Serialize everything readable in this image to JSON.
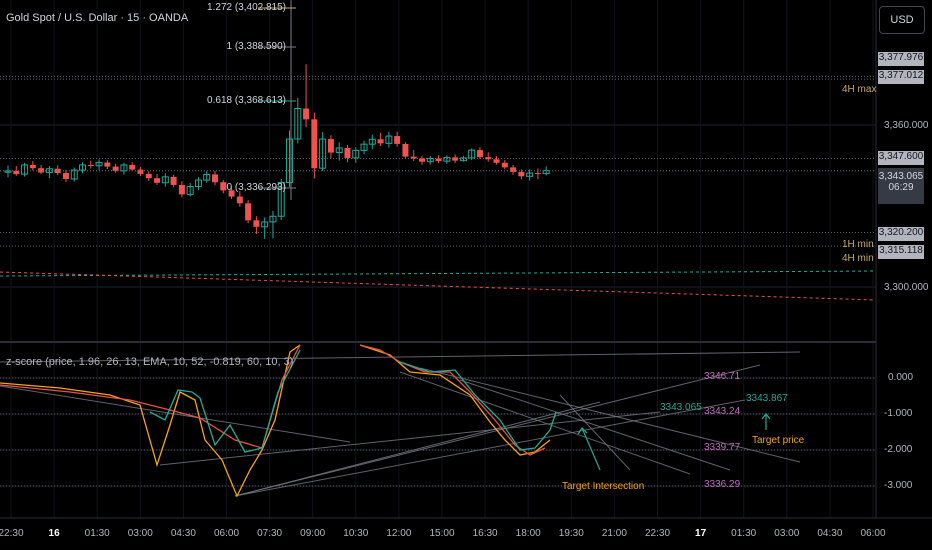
{
  "title": "Gold Spot / U.S. Dollar · 15 · OANDA",
  "currency_button": "USD",
  "indicator_title": "z-score (price, 1.96, 26, 13, EMA, 10, 52, -0.819, 60, 10, 3)",
  "colors": {
    "background": "#000000",
    "bullish": "#26a69a",
    "bearish": "#ef5350",
    "fib_gold": "#c8a96a",
    "fib_teal": "#26a69a",
    "grid": "#1e2230",
    "dotted": "#5d606b",
    "orange": "#f7a21b",
    "magenta": "#c46ac4",
    "red_line": "#e5534b",
    "teal_line": "#22ab94",
    "gray_line": "#787b86"
  },
  "price_axis": {
    "ticks": [
      "3,360.000",
      "3,300.000"
    ],
    "tags": [
      {
        "value": "3,377.976",
        "style": "gray"
      },
      {
        "value": "3,377.012",
        "style": "gray"
      },
      {
        "value": "3,347.600",
        "style": "gray"
      },
      {
        "value": "3,343.065",
        "style": "dark",
        "sub": "06:29"
      },
      {
        "value": "3,320.200",
        "style": "gray"
      },
      {
        "value": "3,315.118",
        "style": "gray"
      }
    ],
    "level_labels": [
      {
        "text": "4H max",
        "color": "#c8a96a"
      },
      {
        "text": "1H min",
        "color": "#c8a96a"
      },
      {
        "text": "4H min",
        "color": "#c8a96a"
      }
    ]
  },
  "fib_levels": [
    {
      "label": "1.272 (3,402.815)",
      "color": "#c8a96a"
    },
    {
      "label": "1 (3,388.590)",
      "color": "#9598a1"
    },
    {
      "label": "0.618 (3,368.613)",
      "color": "#26a69a"
    },
    {
      "label": "0 (3,336.293)",
      "color": "#9598a1"
    }
  ],
  "indicator_axis": {
    "ticks": [
      "0.000",
      "-1.000",
      "-2.000",
      "-3.000"
    ]
  },
  "indicator_annotations": {
    "values": [
      {
        "text": "3346.71",
        "color": "#c46ac4"
      },
      {
        "text": "3343.065",
        "color": "#26a69a"
      },
      {
        "text": "3343.24",
        "color": "#c46ac4"
      },
      {
        "text": "3339.77",
        "color": "#c46ac4"
      },
      {
        "text": "3336.29",
        "color": "#c46ac4"
      },
      {
        "text": "3343.867",
        "color": "#26a69a"
      }
    ],
    "target_price": "Target price",
    "target_intersection": "Target Intersection"
  },
  "time_axis": [
    {
      "label": "22:30",
      "bold": false
    },
    {
      "label": "16",
      "bold": true
    },
    {
      "label": "01:30",
      "bold": false
    },
    {
      "label": "03:00",
      "bold": false
    },
    {
      "label": "04:30",
      "bold": false
    },
    {
      "label": "06:00",
      "bold": false
    },
    {
      "label": "07:30",
      "bold": false
    },
    {
      "label": "09:00",
      "bold": false
    },
    {
      "label": "10:30",
      "bold": false
    },
    {
      "label": "12:00",
      "bold": false
    },
    {
      "label": "15:00",
      "bold": false
    },
    {
      "label": "16:30",
      "bold": false
    },
    {
      "label": "18:00",
      "bold": false
    },
    {
      "label": "19:30",
      "bold": false
    },
    {
      "label": "21:00",
      "bold": false
    },
    {
      "label": "22:30",
      "bold": false
    },
    {
      "label": "17",
      "bold": true
    },
    {
      "label": "01:30",
      "bold": false
    },
    {
      "label": "03:00",
      "bold": false
    },
    {
      "label": "04:30",
      "bold": false
    },
    {
      "label": "06:00",
      "bold": false
    }
  ],
  "chart_data": {
    "type": "candlestick",
    "symbol": "Gold Spot / U.S. Dollar",
    "interval": "15",
    "ylim": [
      3290,
      3405
    ],
    "horizontal_levels": [
      3377.976,
      3377.012,
      3347.6,
      3343.065,
      3320.2,
      3315.118
    ],
    "candles": [
      [
        3342.5,
        3345.0,
        3340.6,
        3343.0
      ],
      [
        3343.0,
        3344.8,
        3341.2,
        3341.8
      ],
      [
        3341.8,
        3346.0,
        3340.9,
        3345.2
      ],
      [
        3345.2,
        3346.6,
        3343.2,
        3344.0
      ],
      [
        3344.0,
        3345.2,
        3341.8,
        3342.4
      ],
      [
        3342.4,
        3344.8,
        3340.3,
        3343.8
      ],
      [
        3343.8,
        3345.1,
        3341.4,
        3342.2
      ],
      [
        3342.2,
        3343.4,
        3338.8,
        3340.0
      ],
      [
        3340.0,
        3344.2,
        3339.1,
        3343.3
      ],
      [
        3343.3,
        3346.2,
        3342.1,
        3345.2
      ],
      [
        3345.2,
        3346.8,
        3343.9,
        3344.9
      ],
      [
        3344.9,
        3347.2,
        3343.4,
        3346.1
      ],
      [
        3346.1,
        3347.0,
        3343.7,
        3344.6
      ],
      [
        3344.6,
        3345.6,
        3342.3,
        3343.0
      ],
      [
        3343.0,
        3346.0,
        3341.6,
        3345.2
      ],
      [
        3345.2,
        3346.2,
        3342.9,
        3343.5
      ],
      [
        3343.5,
        3344.4,
        3341.1,
        3341.9
      ],
      [
        3341.9,
        3342.9,
        3339.3,
        3340.3
      ],
      [
        3340.3,
        3341.8,
        3337.8,
        3338.6
      ],
      [
        3338.6,
        3342.1,
        3337.2,
        3340.8
      ],
      [
        3340.8,
        3341.6,
        3336.9,
        3337.8
      ],
      [
        3337.8,
        3339.2,
        3333.2,
        3334.3
      ],
      [
        3334.3,
        3338.5,
        3333.5,
        3337.2
      ],
      [
        3337.2,
        3340.7,
        3335.9,
        3339.6
      ],
      [
        3339.6,
        3342.8,
        3338.6,
        3341.7
      ],
      [
        3341.7,
        3343.0,
        3337.7,
        3338.8
      ],
      [
        3338.8,
        3339.7,
        3334.7,
        3335.8
      ],
      [
        3335.8,
        3337.0,
        3332.6,
        3333.5
      ],
      [
        3333.5,
        3335.5,
        3329.7,
        3331.0
      ],
      [
        3331.0,
        3332.2,
        3323.6,
        3324.7
      ],
      [
        3324.7,
        3326.2,
        3319.6,
        3322.3
      ],
      [
        3322.3,
        3325.8,
        3317.8,
        3324.1
      ],
      [
        3324.1,
        3328.2,
        3318.0,
        3326.2
      ],
      [
        3326.2,
        3340.0,
        3324.8,
        3338.7
      ],
      [
        3338.7,
        3358.0,
        3337.0,
        3354.8
      ],
      [
        3354.8,
        3370.0,
        3353.2,
        3366.1
      ],
      [
        3366.1,
        3382.5,
        3359.2,
        3362.1
      ],
      [
        3362.1,
        3364.6,
        3340.2,
        3344.0
      ],
      [
        3344.0,
        3357.4,
        3343.0,
        3354.8
      ],
      [
        3354.8,
        3356.2,
        3347.8,
        3349.8
      ],
      [
        3349.8,
        3353.6,
        3346.8,
        3351.5
      ],
      [
        3351.5,
        3352.6,
        3346.2,
        3347.8
      ],
      [
        3347.8,
        3351.8,
        3346.0,
        3350.6
      ],
      [
        3350.6,
        3354.2,
        3349.1,
        3352.9
      ],
      [
        3352.9,
        3356.4,
        3351.0,
        3354.7
      ],
      [
        3354.7,
        3357.1,
        3352.2,
        3353.2
      ],
      [
        3353.2,
        3357.5,
        3351.6,
        3355.9
      ],
      [
        3355.9,
        3357.5,
        3352.0,
        3353.0
      ],
      [
        3353.0,
        3353.6,
        3347.7,
        3348.3
      ],
      [
        3348.3,
        3350.8,
        3346.6,
        3347.6
      ],
      [
        3347.6,
        3348.6,
        3345.3,
        3346.4
      ],
      [
        3346.4,
        3348.5,
        3345.3,
        3347.6
      ],
      [
        3347.6,
        3348.8,
        3345.9,
        3346.6
      ],
      [
        3346.6,
        3348.8,
        3345.6,
        3348.0
      ],
      [
        3348.0,
        3349.1,
        3345.9,
        3346.8
      ],
      [
        3346.8,
        3348.6,
        3346.4,
        3347.8
      ],
      [
        3347.8,
        3351.3,
        3347.0,
        3350.7
      ],
      [
        3350.7,
        3351.8,
        3347.4,
        3348.1
      ],
      [
        3348.1,
        3349.9,
        3346.4,
        3347.3
      ],
      [
        3347.3,
        3348.5,
        3345.3,
        3346.0
      ],
      [
        3346.0,
        3347.0,
        3343.6,
        3344.3
      ],
      [
        3344.3,
        3345.2,
        3341.5,
        3342.6
      ],
      [
        3342.6,
        3343.5,
        3339.9,
        3341.0
      ],
      [
        3341.0,
        3343.6,
        3339.4,
        3342.2
      ],
      [
        3342.2,
        3343.9,
        3340.0,
        3342.0
      ],
      [
        3342.0,
        3344.7,
        3341.3,
        3343.1
      ]
    ],
    "indicator": {
      "name": "z-score (price, 1.96, 26, 13, EMA, 10, 52, -0.819, 60, 10, 3)",
      "ylim": [
        -3.3,
        1.0
      ],
      "ticks": [
        0,
        -1,
        -2,
        -3
      ],
      "levels": [
        {
          "value": 3346.71,
          "color": "#c46ac4"
        },
        {
          "value": 3343.24,
          "color": "#c46ac4"
        },
        {
          "value": 3339.77,
          "color": "#c46ac4"
        },
        {
          "value": 3336.29,
          "color": "#c46ac4"
        }
      ],
      "current_price": 3343.065,
      "target_price": 3343.867
    }
  }
}
